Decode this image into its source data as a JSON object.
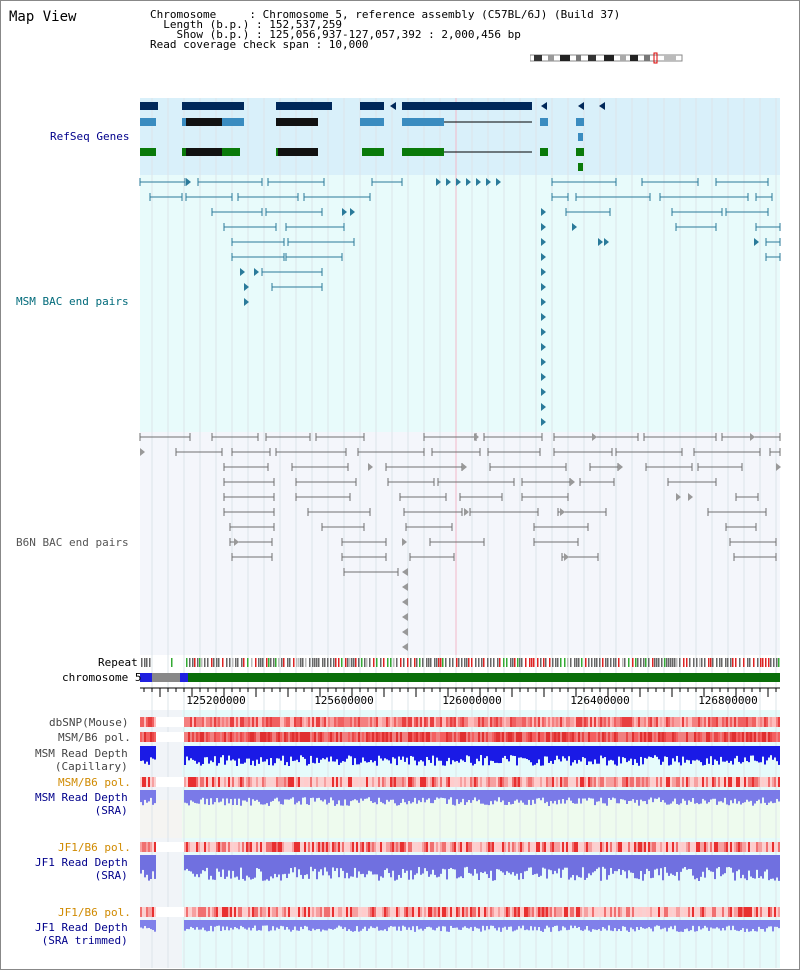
{
  "window": {
    "title": "Map View"
  },
  "info": {
    "chromosome": "Chromosome     : Chromosome 5, reference assembly (C57BL/6J) (Build 37)",
    "length": "  Length (b.p.) : 152,537,259",
    "show": "    Show (b.p.) : 125,056,937-127,057,392 : 2,000,456 bp",
    "coverage": "Read coverage check span : 10,000"
  },
  "tracks": {
    "refseq": "RefSeq Genes",
    "msm_bac": "MSM BAC end pairs",
    "b6n_bac": "B6N BAC end pairs",
    "repeat": "Repeat",
    "chromosome": "chromosome 5",
    "dbsnp": "dbSNP(Mouse)",
    "msm_b6_pol_1": "MSM/B6 pol.",
    "msm_read_depth_cap_1": "MSM Read Depth",
    "msm_read_depth_cap_2": "(Capillary)",
    "msm_b6_pol_2": "MSM/B6 pol.",
    "msm_read_depth_sra_1": "MSM Read Depth",
    "msm_read_depth_sra_2": "(SRA)",
    "jf1_b6_pol_1": "JF1/B6 pol.",
    "jf1_read_depth_sra_1": "JF1 Read Depth",
    "jf1_read_depth_sra_2": "(SRA)",
    "jf1_b6_pol_2": "JF1/B6 pol.",
    "jf1_read_depth_trim_1": "JF1 Read Depth",
    "jf1_read_depth_trim_2": "(SRA trimmed)"
  },
  "axis": {
    "ticks": [
      "125200000",
      "125600000",
      "126000000",
      "126400000",
      "126800000"
    ]
  },
  "colors": {
    "refseq_bg": "#d9f0fa",
    "msm_bg": "#e8fbfb",
    "b6n_bg": "#f4f6fb",
    "gene_dark": "#00285a",
    "gene_mid": "#3a8cc0",
    "gene_green": "#0a7a0a",
    "msm_pair": "#2a7a9a",
    "b6n_pair": "#707070",
    "label_blue": "#00008b",
    "label_teal": "#006a7a",
    "label_orange": "#d08a00"
  }
}
